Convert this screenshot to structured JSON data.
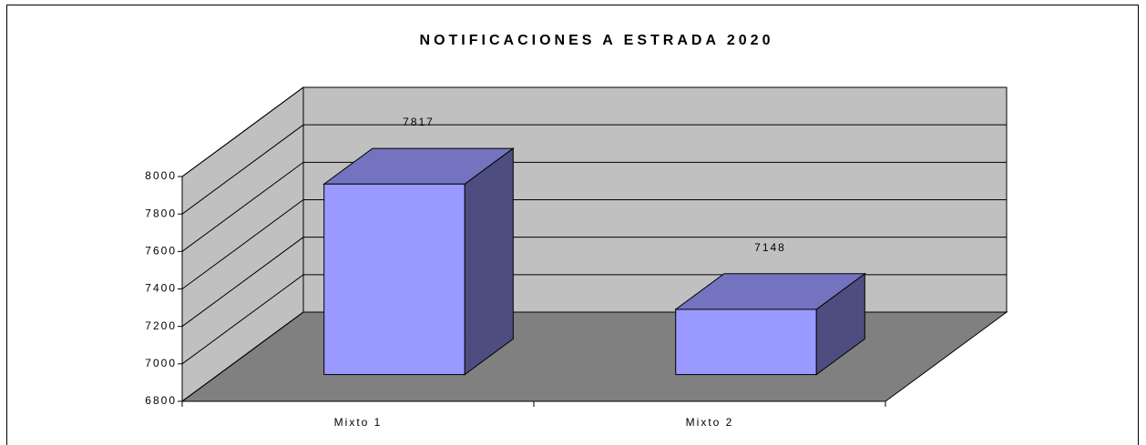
{
  "chart_data": {
    "type": "bar3d",
    "title": "NOTIFICACIONES A ESTRADA 2020",
    "categories": [
      "Mixto 1",
      "Mixto 2"
    ],
    "values": [
      7817,
      7148
    ],
    "color": "#9999ff",
    "ylim": [
      6800,
      8000
    ],
    "yticks": [
      6800,
      7000,
      7200,
      7400,
      7600,
      7800,
      8000
    ],
    "grid": true
  }
}
